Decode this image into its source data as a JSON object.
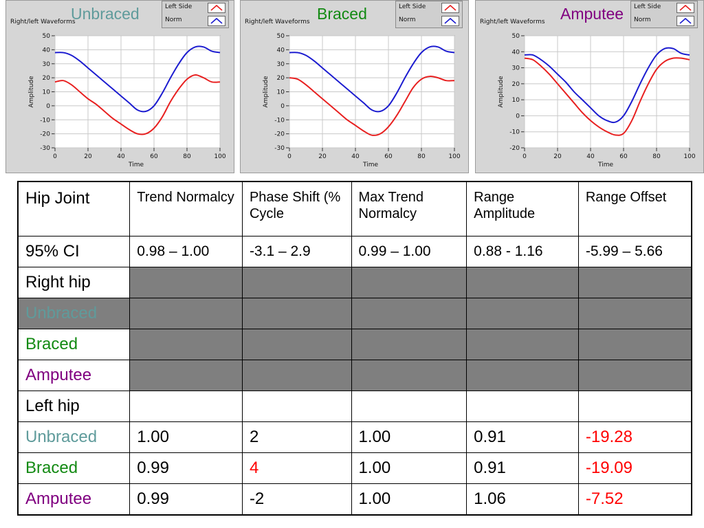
{
  "colors": {
    "unbraced": "#5f9b9b",
    "braced": "#138a13",
    "amputee": "#800080",
    "left_side_line": "#e82020",
    "norm_line": "#1c1cd0",
    "highlight": "#ff0000",
    "gray_fill": "#7f7f7f"
  },
  "charts": [
    {
      "title": "Unbraced",
      "title_color": "#5f9b9b",
      "caption": "Right/left Waveforms",
      "legend": [
        "Left Side",
        "Norm"
      ]
    },
    {
      "title": "Braced",
      "title_color": "#138a13",
      "caption": "Right/left Waveforms",
      "legend": [
        "Left Side",
        "Norm"
      ]
    },
    {
      "title": "Amputee",
      "title_color": "#800080",
      "caption": "Right/left Waveforms",
      "legend": [
        "Left Side",
        "Norm"
      ]
    }
  ],
  "chart_data": [
    {
      "type": "line",
      "title": "Unbraced",
      "xlabel": "Time",
      "ylabel": "Amplitude",
      "xlim": [
        0,
        100
      ],
      "ylim": [
        -30,
        50
      ],
      "xticks": [
        0,
        20,
        40,
        60,
        80,
        100
      ],
      "yticks": [
        -30,
        -20,
        -10,
        0,
        10,
        20,
        30,
        40,
        50
      ],
      "grid": true,
      "legend_position": "top-right",
      "series": [
        {
          "name": "Left Side",
          "color": "#e82020",
          "x": [
            0,
            5,
            10,
            15,
            20,
            25,
            30,
            35,
            40,
            45,
            50,
            55,
            60,
            65,
            70,
            75,
            80,
            85,
            90,
            95,
            100
          ],
          "y": [
            17,
            18,
            15,
            10,
            5,
            1,
            -4,
            -9,
            -13,
            -17,
            -20,
            -20,
            -16,
            -8,
            3,
            12,
            19,
            22,
            20,
            17,
            17
          ]
        },
        {
          "name": "Norm",
          "color": "#1c1cd0",
          "x": [
            0,
            5,
            10,
            15,
            20,
            25,
            30,
            35,
            40,
            45,
            50,
            55,
            60,
            65,
            70,
            75,
            80,
            85,
            90,
            95,
            100
          ],
          "y": [
            38,
            38,
            36,
            32,
            27,
            22,
            17,
            12,
            7,
            2,
            -3,
            -4,
            0,
            9,
            20,
            30,
            38,
            42,
            42,
            39,
            38
          ]
        }
      ]
    },
    {
      "type": "line",
      "title": "Braced",
      "xlabel": "Time",
      "ylabel": "Amplitude",
      "xlim": [
        0,
        100
      ],
      "ylim": [
        -30,
        50
      ],
      "xticks": [
        0,
        20,
        40,
        60,
        80,
        100
      ],
      "yticks": [
        -30,
        -20,
        -10,
        0,
        10,
        20,
        30,
        40,
        50
      ],
      "grid": true,
      "legend_position": "top-right",
      "series": [
        {
          "name": "Left Side",
          "color": "#e82020",
          "x": [
            0,
            5,
            10,
            15,
            20,
            25,
            30,
            35,
            40,
            45,
            50,
            55,
            60,
            65,
            70,
            75,
            80,
            85,
            90,
            95,
            100
          ],
          "y": [
            20,
            19,
            15,
            10,
            5,
            0,
            -5,
            -10,
            -14,
            -18,
            -21,
            -20,
            -15,
            -7,
            3,
            13,
            19,
            21,
            20,
            18,
            18
          ]
        },
        {
          "name": "Norm",
          "color": "#1c1cd0",
          "x": [
            0,
            5,
            10,
            15,
            20,
            25,
            30,
            35,
            40,
            45,
            50,
            55,
            60,
            65,
            70,
            75,
            80,
            85,
            90,
            95,
            100
          ],
          "y": [
            38,
            38,
            36,
            32,
            27,
            22,
            17,
            12,
            7,
            2,
            -3,
            -4,
            0,
            9,
            20,
            30,
            38,
            42,
            42,
            39,
            38
          ]
        }
      ]
    },
    {
      "type": "line",
      "title": "Amputee",
      "xlabel": "Time",
      "ylabel": "Amplitude",
      "xlim": [
        0,
        100
      ],
      "ylim": [
        -20,
        50
      ],
      "xticks": [
        0,
        20,
        40,
        60,
        80,
        100
      ],
      "yticks": [
        -20,
        -10,
        0,
        10,
        20,
        30,
        40,
        50
      ],
      "grid": true,
      "legend_position": "top-right",
      "series": [
        {
          "name": "Left Side",
          "color": "#e82020",
          "x": [
            0,
            5,
            10,
            15,
            20,
            25,
            30,
            35,
            40,
            45,
            50,
            55,
            60,
            65,
            70,
            75,
            80,
            85,
            90,
            95,
            100
          ],
          "y": [
            36,
            35,
            31,
            26,
            20,
            14,
            8,
            2,
            -3,
            -7,
            -10,
            -12,
            -11,
            -3,
            9,
            20,
            29,
            34,
            36,
            36,
            35
          ]
        },
        {
          "name": "Norm",
          "color": "#1c1cd0",
          "x": [
            0,
            5,
            10,
            15,
            20,
            25,
            30,
            35,
            40,
            45,
            50,
            55,
            60,
            65,
            70,
            75,
            80,
            85,
            90,
            95,
            100
          ],
          "y": [
            38,
            38,
            35,
            31,
            26,
            21,
            15,
            10,
            5,
            0,
            -3,
            -4,
            0,
            9,
            20,
            30,
            38,
            42,
            42,
            39,
            38
          ]
        }
      ]
    }
  ],
  "table": {
    "header": [
      "Hip Joint",
      "Trend Normalcy",
      "Phase Shift (% Cycle",
      "Max Trend Normalcy",
      "Range Amplitude",
      "Range Offset"
    ],
    "ci_row": [
      "95% CI",
      "0.98 – 1.00",
      "-3.1 – 2.9",
      "0.99 – 1.00",
      "0.88 - 1.16",
      "-5.99 – 5.66"
    ],
    "right_hip_label": "Right hip",
    "right_rows": [
      {
        "label": "Unbraced",
        "color": "#5f9b9b"
      },
      {
        "label": "Braced",
        "color": "#138a13"
      },
      {
        "label": "Amputee",
        "color": "#800080"
      }
    ],
    "left_hip_label": "Left hip",
    "left_rows": [
      {
        "label": "Unbraced",
        "color": "#5f9b9b",
        "values": [
          "1.00",
          "2",
          "1.00",
          "0.91",
          "-19.28"
        ],
        "highlight": [
          false,
          false,
          false,
          false,
          true
        ]
      },
      {
        "label": "Braced",
        "color": "#138a13",
        "values": [
          "0.99",
          "4",
          "1.00",
          "0.91",
          "-19.09"
        ],
        "highlight": [
          false,
          true,
          false,
          false,
          true
        ]
      },
      {
        "label": "Amputee",
        "color": "#800080",
        "values": [
          "0.99",
          "-2",
          "1.00",
          "1.06",
          "-7.52"
        ],
        "highlight": [
          false,
          false,
          false,
          false,
          true
        ]
      }
    ]
  }
}
